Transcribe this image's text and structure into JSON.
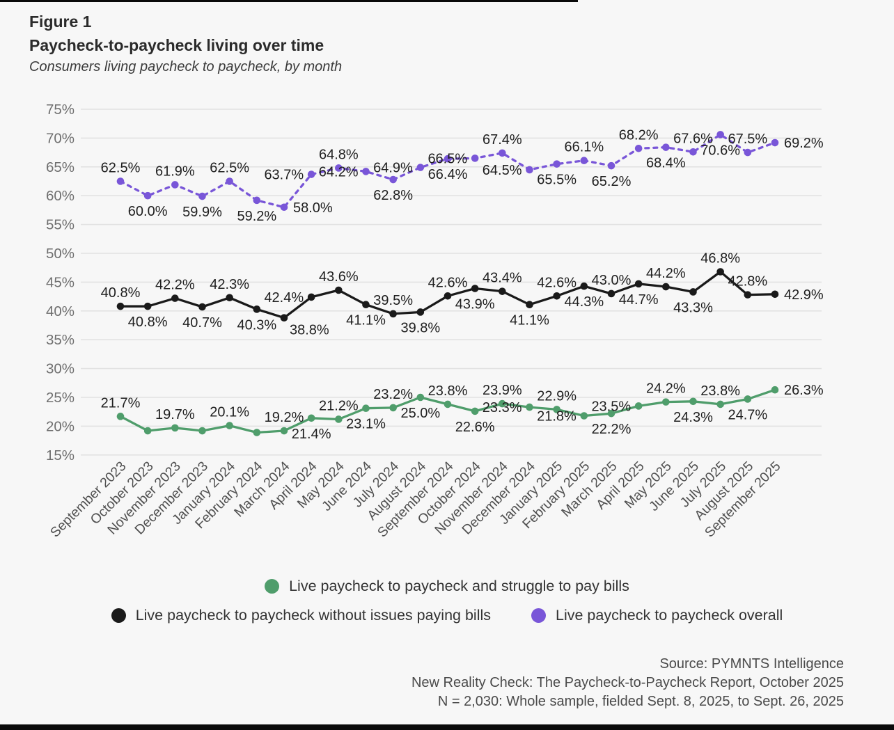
{
  "figure": {
    "label": "Figure 1",
    "title": "Paycheck-to-paycheck living over time",
    "subtitle": "Consumers living paycheck to paycheck, by month"
  },
  "chart_data": {
    "type": "line",
    "title": "Paycheck-to-paycheck living over time",
    "xlabel": "",
    "ylabel": "",
    "grid": true,
    "legend_position": "bottom",
    "x": [
      "September 2023",
      "October 2023",
      "November 2023",
      "December 2023",
      "January 2024",
      "February 2024",
      "March 2024",
      "April 2024",
      "May 2024",
      "June 2024",
      "July 2024",
      "August 2024",
      "September 2024",
      "October 2024",
      "November 2024",
      "December 2024",
      "January 2025",
      "February 2025",
      "March 2025",
      "April 2025",
      "May 2025",
      "June 2025",
      "July 2025",
      "August 2025",
      "September 2025"
    ],
    "y_axis": {
      "min": 15,
      "max": 75,
      "step": 5,
      "ticks": [
        "75%",
        "70%",
        "65%",
        "60%",
        "55%",
        "50%",
        "45%",
        "40%",
        "35%",
        "30%",
        "25%",
        "20%",
        "15%"
      ]
    },
    "series": [
      {
        "name": "Live paycheck to paycheck overall",
        "color": "#7956d8",
        "style": "dashed",
        "values": [
          62.5,
          60.0,
          61.9,
          59.9,
          62.5,
          59.2,
          58.0,
          63.7,
          64.8,
          64.2,
          62.8,
          64.9,
          66.4,
          66.5,
          67.4,
          64.5,
          65.5,
          66.1,
          65.2,
          68.2,
          68.4,
          67.6,
          70.6,
          67.5,
          69.2
        ],
        "labels": [
          "62.5%",
          "60.0%",
          "61.9%",
          "59.9%",
          "62.5%",
          "59.2%",
          "58.0%",
          "63.7%",
          "64.8%",
          "64.2%",
          "62.8%",
          "64.9%",
          "66.4%",
          "66.5%",
          "67.4%",
          "64.5%",
          "65.5%",
          "66.1%",
          "65.2%",
          "68.2%",
          "68.4%",
          "67.6%",
          "70.6%",
          "67.5%",
          "69.2%"
        ],
        "label_pos": [
          "above",
          "below",
          "above",
          "below",
          "above",
          "below",
          "right",
          "left",
          "above",
          "left",
          "below",
          "left",
          "below",
          "left",
          "above",
          "left",
          "below",
          "above",
          "below",
          "above",
          "below",
          "above",
          "below",
          "above",
          "right"
        ]
      },
      {
        "name": "Live paycheck to paycheck without issues paying bills",
        "color": "#1a1a1a",
        "style": "solid",
        "values": [
          40.8,
          40.8,
          42.2,
          40.7,
          42.3,
          40.3,
          38.8,
          42.4,
          43.6,
          41.1,
          39.5,
          39.8,
          42.6,
          43.9,
          43.4,
          41.1,
          42.6,
          44.3,
          43.0,
          44.7,
          44.2,
          43.3,
          46.8,
          42.8,
          42.9
        ],
        "labels": [
          "40.8%",
          "40.8%",
          "42.2%",
          "40.7%",
          "42.3%",
          "40.3%",
          "38.8%",
          "42.4%",
          "43.6%",
          "41.1%",
          "39.5%",
          "39.8%",
          "42.6%",
          "43.9%",
          "43.4%",
          "41.1%",
          "42.6%",
          "44.3%",
          "43.0%",
          "44.7%",
          "44.2%",
          "43.3%",
          "46.8%",
          "42.8%",
          "42.9%"
        ],
        "label_pos": [
          "above",
          "below",
          "above",
          "below",
          "above",
          "below",
          "belowright",
          "left",
          "above",
          "below",
          "above",
          "below",
          "above",
          "below",
          "above",
          "below",
          "above",
          "below",
          "above",
          "below",
          "above",
          "below",
          "above",
          "above",
          "right"
        ]
      },
      {
        "name": "Live paycheck to paycheck and struggle to pay bills",
        "color": "#4f9d6b",
        "style": "solid",
        "values": [
          21.7,
          19.2,
          19.7,
          19.2,
          20.1,
          18.9,
          19.2,
          21.4,
          21.2,
          23.1,
          23.2,
          25.0,
          23.8,
          22.6,
          23.9,
          23.3,
          22.9,
          21.8,
          22.2,
          23.5,
          24.2,
          24.3,
          23.8,
          24.7,
          26.3
        ],
        "labels": [
          "21.7%",
          null,
          "19.7%",
          null,
          "20.1%",
          null,
          "19.2%",
          "21.4%",
          "21.2%",
          "23.1%",
          "23.2%",
          "25.0%",
          "23.8%",
          "22.6%",
          "23.9%",
          "23.3%",
          "22.9%",
          "21.8%",
          "22.2%",
          "23.5%",
          "24.2%",
          "24.3%",
          "23.8%",
          "24.7%",
          "26.3%"
        ],
        "label_pos": [
          "above",
          null,
          "above",
          null,
          "above",
          null,
          "above",
          "below",
          "above",
          "below",
          "above",
          "below",
          "above",
          "below",
          "above",
          "left",
          "above",
          "left",
          "below",
          "left",
          "above",
          "below",
          "above",
          "below",
          "right"
        ]
      }
    ]
  },
  "source": {
    "line1": "Source: PYMNTS Intelligence",
    "line2": "New Reality Check: The Paycheck-to-Paycheck Report, October 2025",
    "line3": "N = 2,030: Whole sample, fielded Sept. 8, 2025, to Sept. 26, 2025"
  }
}
